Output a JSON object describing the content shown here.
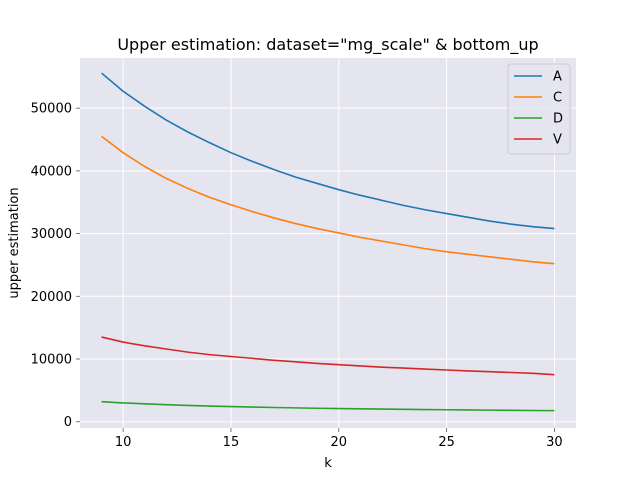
{
  "chart_data": {
    "type": "line",
    "title": "Upper estimation: dataset=\"mg_scale\" & bottom_up",
    "xlabel": "k",
    "ylabel": "upper estimation",
    "xlim": [
      8,
      31
    ],
    "ylim": [
      -1000,
      58000
    ],
    "xticks": [
      10,
      15,
      20,
      25,
      30
    ],
    "yticks": [
      0,
      10000,
      20000,
      30000,
      40000,
      50000
    ],
    "grid": true,
    "legend_position": "top-right",
    "x": [
      9,
      10,
      11,
      12,
      13,
      14,
      15,
      16,
      17,
      18,
      19,
      20,
      21,
      22,
      23,
      24,
      25,
      26,
      27,
      28,
      29,
      30
    ],
    "series": [
      {
        "name": "A",
        "color": "#1f77b4",
        "values": [
          55600,
          52700,
          50300,
          48100,
          46200,
          44500,
          42900,
          41500,
          40200,
          39000,
          38000,
          37000,
          36100,
          35300,
          34500,
          33800,
          33200,
          32600,
          32000,
          31500,
          31100,
          30800
        ]
      },
      {
        "name": "C",
        "color": "#ff7f0e",
        "values": [
          45500,
          42900,
          40700,
          38800,
          37200,
          35800,
          34600,
          33500,
          32500,
          31600,
          30800,
          30100,
          29400,
          28800,
          28200,
          27600,
          27100,
          26700,
          26300,
          25900,
          25500,
          25200
        ]
      },
      {
        "name": "D",
        "color": "#2ca02c",
        "values": [
          3200,
          3000,
          2850,
          2720,
          2600,
          2500,
          2420,
          2340,
          2270,
          2210,
          2150,
          2100,
          2060,
          2020,
          1980,
          1940,
          1910,
          1880,
          1850,
          1820,
          1790,
          1770
        ]
      },
      {
        "name": "V",
        "color": "#d62728",
        "values": [
          13500,
          12700,
          12100,
          11600,
          11100,
          10700,
          10400,
          10100,
          9800,
          9550,
          9300,
          9100,
          8900,
          8700,
          8550,
          8400,
          8250,
          8100,
          7980,
          7850,
          7720,
          7500
        ]
      }
    ]
  },
  "colors": {
    "plot_background": "#e5e5ef",
    "grid": "#ffffff"
  }
}
